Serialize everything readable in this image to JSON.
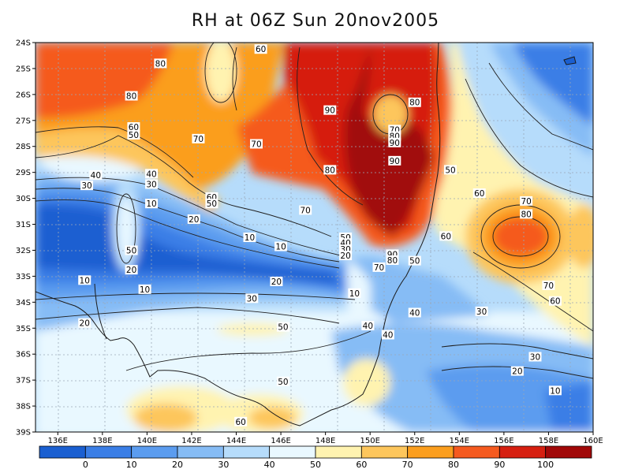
{
  "title": "RH at 06Z Sun 20nov2005",
  "lat_labels": [
    "24S",
    "25S",
    "26S",
    "27S",
    "28S",
    "29S",
    "30S",
    "31S",
    "32S",
    "33S",
    "34S",
    "35S",
    "36S",
    "37S",
    "38S",
    "39S"
  ],
  "lon_labels": [
    "136E",
    "138E",
    "140E",
    "142E",
    "144E",
    "146E",
    "148E",
    "150E",
    "152E",
    "154E",
    "156E",
    "158E",
    "160E"
  ],
  "colorbar": {
    "ticks": [
      "0",
      "10",
      "20",
      "30",
      "40",
      "50",
      "60",
      "70",
      "80",
      "90",
      "100"
    ],
    "colors": [
      "#1a5fd1",
      "#3a7ee6",
      "#5b9cef",
      "#86bcf5",
      "#b6dcfb",
      "#e9f8ff",
      "#fff3b0",
      "#fdc65c",
      "#fb9e1e",
      "#f55a1f",
      "#d61f10",
      "#a10808"
    ]
  },
  "contour_labels": [
    {
      "t": "60",
      "lon": 145.1,
      "lat": 24.25
    },
    {
      "t": "80",
      "lon": 140.6,
      "lat": 24.8
    },
    {
      "t": "80",
      "lon": 139.3,
      "lat": 26.05
    },
    {
      "t": "90",
      "lon": 148.2,
      "lat": 26.6
    },
    {
      "t": "80",
      "lon": 152.0,
      "lat": 26.3
    },
    {
      "t": "70",
      "lon": 151.1,
      "lat": 27.35
    },
    {
      "t": "80",
      "lon": 151.1,
      "lat": 27.6
    },
    {
      "t": "90",
      "lon": 151.1,
      "lat": 27.85
    },
    {
      "t": "60",
      "lon": 139.4,
      "lat": 27.25
    },
    {
      "t": "50",
      "lon": 139.4,
      "lat": 27.55
    },
    {
      "t": "70",
      "lon": 142.3,
      "lat": 27.7
    },
    {
      "t": "70",
      "lon": 144.9,
      "lat": 27.9
    },
    {
      "t": "80",
      "lon": 148.2,
      "lat": 28.9
    },
    {
      "t": "90",
      "lon": 151.1,
      "lat": 28.55
    },
    {
      "t": "50",
      "lon": 153.6,
      "lat": 28.9
    },
    {
      "t": "40",
      "lon": 137.7,
      "lat": 29.1
    },
    {
      "t": "30",
      "lon": 137.3,
      "lat": 29.5
    },
    {
      "t": "40",
      "lon": 140.2,
      "lat": 29.05
    },
    {
      "t": "30",
      "lon": 140.2,
      "lat": 29.45
    },
    {
      "t": "60",
      "lon": 142.9,
      "lat": 29.95
    },
    {
      "t": "50",
      "lon": 142.9,
      "lat": 30.2
    },
    {
      "t": "10",
      "lon": 140.2,
      "lat": 30.2
    },
    {
      "t": "60",
      "lon": 154.9,
      "lat": 29.8
    },
    {
      "t": "70",
      "lon": 157.0,
      "lat": 30.1
    },
    {
      "t": "70",
      "lon": 147.1,
      "lat": 30.45
    },
    {
      "t": "80",
      "lon": 157.0,
      "lat": 30.6
    },
    {
      "t": "20",
      "lon": 142.1,
      "lat": 30.8
    },
    {
      "t": "10",
      "lon": 144.6,
      "lat": 31.5
    },
    {
      "t": "60",
      "lon": 153.4,
      "lat": 31.45
    },
    {
      "t": "50",
      "lon": 148.9,
      "lat": 31.5
    },
    {
      "t": "40",
      "lon": 148.9,
      "lat": 31.72
    },
    {
      "t": "30",
      "lon": 148.9,
      "lat": 31.96
    },
    {
      "t": "20",
      "lon": 148.9,
      "lat": 32.2
    },
    {
      "t": "10",
      "lon": 146.0,
      "lat": 31.85
    },
    {
      "t": "50",
      "lon": 139.3,
      "lat": 32.0
    },
    {
      "t": "90",
      "lon": 151.0,
      "lat": 32.15
    },
    {
      "t": "80",
      "lon": 151.0,
      "lat": 32.38
    },
    {
      "t": "70",
      "lon": 150.4,
      "lat": 32.65
    },
    {
      "t": "50",
      "lon": 152.0,
      "lat": 32.4
    },
    {
      "t": "20",
      "lon": 139.3,
      "lat": 32.75
    },
    {
      "t": "10",
      "lon": 137.2,
      "lat": 33.15
    },
    {
      "t": "20",
      "lon": 145.8,
      "lat": 33.2
    },
    {
      "t": "10",
      "lon": 139.9,
      "lat": 33.5
    },
    {
      "t": "10",
      "lon": 149.3,
      "lat": 33.65
    },
    {
      "t": "70",
      "lon": 158.0,
      "lat": 33.35
    },
    {
      "t": "30",
      "lon": 144.7,
      "lat": 33.85
    },
    {
      "t": "60",
      "lon": 158.3,
      "lat": 33.95
    },
    {
      "t": "40",
      "lon": 152.0,
      "lat": 34.4
    },
    {
      "t": "30",
      "lon": 155.0,
      "lat": 34.35
    },
    {
      "t": "20",
      "lon": 137.2,
      "lat": 34.8
    },
    {
      "t": "50",
      "lon": 146.1,
      "lat": 34.95
    },
    {
      "t": "40",
      "lon": 149.9,
      "lat": 34.9
    },
    {
      "t": "40",
      "lon": 150.8,
      "lat": 35.25
    },
    {
      "t": "30",
      "lon": 157.4,
      "lat": 36.1
    },
    {
      "t": "20",
      "lon": 156.6,
      "lat": 36.65
    },
    {
      "t": "50",
      "lon": 146.1,
      "lat": 37.05
    },
    {
      "t": "10",
      "lon": 158.3,
      "lat": 37.4
    },
    {
      "t": "60",
      "lon": 144.2,
      "lat": 38.6
    }
  ]
}
